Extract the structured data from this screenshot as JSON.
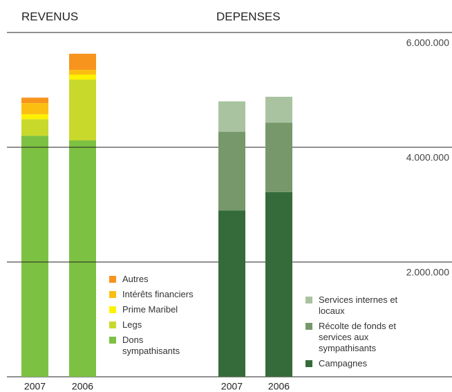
{
  "chart_data": [
    {
      "type": "stacked-bar",
      "title": "REVENUS",
      "categories": [
        "2007",
        "2006"
      ],
      "series": [
        {
          "name": "Dons sympathisants",
          "color": "#7dc142",
          "values": [
            4200000,
            4120000
          ]
        },
        {
          "name": "Legs",
          "color": "#c8d92b",
          "values": [
            290000,
            1060000
          ]
        },
        {
          "name": "Prime Maribel",
          "color": "#fff200",
          "values": [
            85000,
            85000
          ]
        },
        {
          "name": "Intérêts financiers",
          "color": "#fbbf12",
          "values": [
            195000,
            85000
          ]
        },
        {
          "name": "Autres",
          "color": "#f7941d",
          "values": [
            95000,
            280000
          ]
        }
      ],
      "ylim": [
        0,
        6000000
      ]
    },
    {
      "type": "stacked-bar",
      "title": "DEPENSES",
      "categories": [
        "2007",
        "2006"
      ],
      "series": [
        {
          "name": "Campagnes",
          "color": "#356b3a",
          "values": [
            2900000,
            3220000
          ]
        },
        {
          "name": "Récolte de fonds et services aux sympathisants",
          "color": "#76986a",
          "values": [
            1370000,
            1210000
          ]
        },
        {
          "name": "Services internes et locaux",
          "color": "#a9c3a0",
          "values": [
            530000,
            450000
          ]
        }
      ],
      "ylim": [
        0,
        6000000
      ],
      "yticks": [
        {
          "value": 2000000,
          "label": "2.000.000"
        },
        {
          "value": 4000000,
          "label": "4.000.000"
        },
        {
          "value": 6000000,
          "label": "6.000.000"
        }
      ]
    }
  ]
}
